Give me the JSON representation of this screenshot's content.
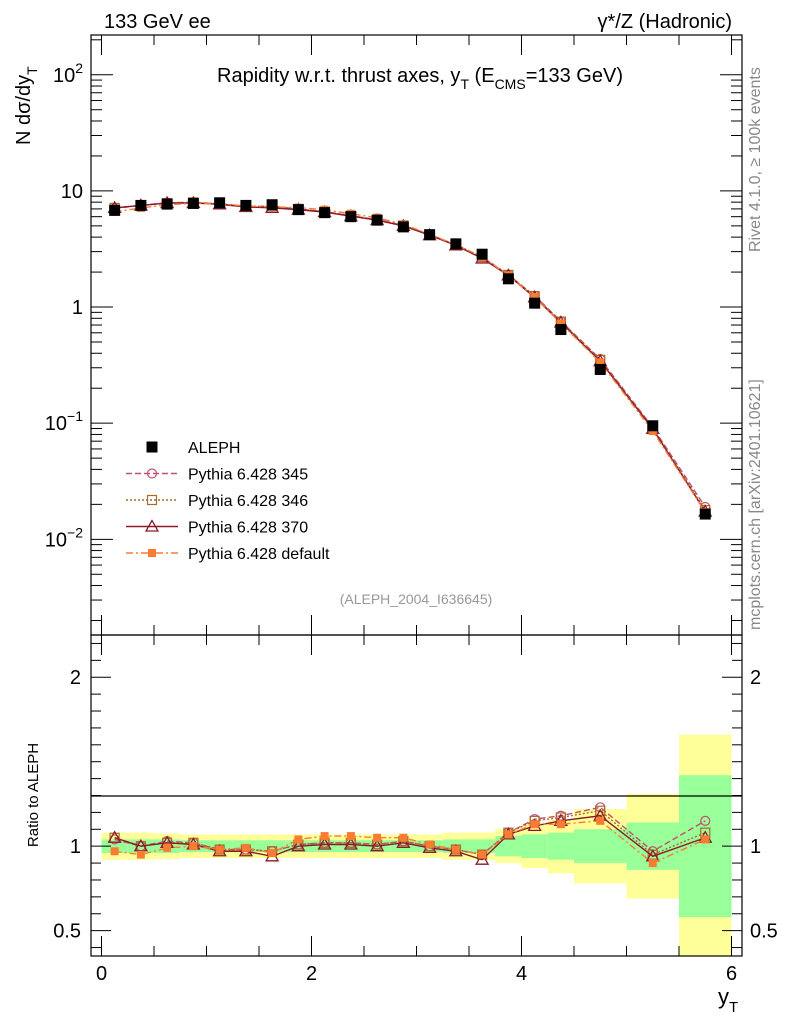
{
  "header": {
    "left": "133 GeV ee",
    "right": "γ*/Z (Hadronic)"
  },
  "side_labels": {
    "rivet": "Rivet 4.1.0, ≥ 100k events",
    "mcplots": "mcplots.cern.ch [arXiv:2401.10621]"
  },
  "chart_data": {
    "type": "line",
    "title_main": "Rapidity w.r.t. thrust axes, y",
    "title_sub": "T",
    "title_tail_open": " (E",
    "title_tail_sub": "CMS",
    "title_tail_close": "=133 GeV)",
    "analysis_tag": "(ALEPH_2004_I636645)",
    "ylabel_main": "N  dσ/dy",
    "ylabel_sub": "T",
    "xlabel_main": "y",
    "xlabel_sub": "T",
    "ratio_ylabel": "Ratio to ALEPH",
    "xlim": [
      -0.1,
      6.1
    ],
    "ylim_log": [
      0.0015,
      220
    ],
    "ratio_ylim": [
      0.35,
      2.25
    ],
    "x_ticks": [
      "0",
      "2",
      "4",
      "6"
    ],
    "y_ticks": [
      {
        "value": 100,
        "base": "10",
        "exp": "2"
      },
      {
        "value": 10,
        "base": "10",
        "exp": ""
      },
      {
        "value": 1,
        "base": "1",
        "exp": ""
      },
      {
        "value": 0.1,
        "base": "10",
        "exp": "−1"
      },
      {
        "value": 0.01,
        "base": "10",
        "exp": "−2"
      }
    ],
    "ratio_ticks": [
      "0.5",
      "1",
      "2"
    ],
    "x_edges": [
      0,
      0.25,
      0.5,
      0.75,
      1.0,
      1.25,
      1.5,
      1.75,
      2.0,
      2.25,
      2.5,
      2.75,
      3.0,
      3.25,
      3.5,
      3.75,
      4.0,
      4.25,
      4.5,
      5.0,
      5.5,
      6.0
    ],
    "x": [
      0.125,
      0.375,
      0.625,
      0.875,
      1.125,
      1.375,
      1.625,
      1.875,
      2.125,
      2.375,
      2.625,
      2.875,
      3.125,
      3.375,
      3.625,
      3.875,
      4.125,
      4.375,
      4.75,
      5.25,
      5.75
    ],
    "data_values": [
      6.8,
      7.5,
      7.7,
      7.8,
      7.9,
      7.5,
      7.6,
      6.9,
      6.5,
      6.0,
      5.6,
      4.9,
      4.2,
      3.5,
      2.85,
      1.75,
      1.08,
      0.64,
      0.29,
      0.095,
      0.0165
    ],
    "ratio_bands": {
      "green_half": [
        0.04,
        0.04,
        0.04,
        0.035,
        0.035,
        0.035,
        0.035,
        0.035,
        0.035,
        0.035,
        0.035,
        0.035,
        0.035,
        0.04,
        0.04,
        0.06,
        0.07,
        0.08,
        0.1,
        0.14,
        0.42
      ],
      "yellow_half": [
        0.08,
        0.08,
        0.075,
        0.07,
        0.07,
        0.07,
        0.07,
        0.07,
        0.07,
        0.07,
        0.07,
        0.07,
        0.07,
        0.08,
        0.08,
        0.1,
        0.13,
        0.16,
        0.22,
        0.31,
        0.66
      ]
    },
    "series": [
      {
        "name": "ALEPH",
        "color": "#000000",
        "dash": "",
        "marker": "filled-square",
        "ratios": [
          1,
          1,
          1,
          1,
          1,
          1,
          1,
          1,
          1,
          1,
          1,
          1,
          1,
          1,
          1,
          1,
          1,
          1,
          1,
          1,
          1
        ]
      },
      {
        "name": "Pythia 6.428 345",
        "color": "#c0506e",
        "dash": "6,3",
        "marker": "open-circle",
        "ratios": [
          1.04,
          1.0,
          1.03,
          1.02,
          0.98,
          0.98,
          0.97,
          1.01,
          1.02,
          1.02,
          1.01,
          1.03,
          1.0,
          0.98,
          0.95,
          1.08,
          1.16,
          1.18,
          1.23,
          0.97,
          1.15
        ]
      },
      {
        "name": "Pythia 6.428 346",
        "color": "#a86b2a",
        "dash": "2,2",
        "marker": "open-square",
        "ratios": [
          1.05,
          1.0,
          1.02,
          1.02,
          0.98,
          0.98,
          0.97,
          1.01,
          1.02,
          1.02,
          1.01,
          1.03,
          1.0,
          0.98,
          0.95,
          1.08,
          1.15,
          1.17,
          1.21,
          0.95,
          1.08
        ]
      },
      {
        "name": "Pythia 6.428 370",
        "color": "#8b1a2a",
        "dash": "",
        "marker": "open-triangle",
        "ratios": [
          1.05,
          1.0,
          1.02,
          1.01,
          0.97,
          0.97,
          0.94,
          1.0,
          1.01,
          1.01,
          1.0,
          1.02,
          0.99,
          0.97,
          0.92,
          1.07,
          1.12,
          1.15,
          1.18,
          0.94,
          1.05
        ]
      },
      {
        "name": "Pythia 6.428 default",
        "color": "#f97c33",
        "dash": "7,3,2,3",
        "marker": "filled-small-square",
        "ratios": [
          0.97,
          0.95,
          0.99,
          1.0,
          0.98,
          0.99,
          0.96,
          1.04,
          1.06,
          1.06,
          1.05,
          1.05,
          1.01,
          0.98,
          0.95,
          1.07,
          1.13,
          1.13,
          1.15,
          0.9,
          1.04
        ]
      }
    ]
  }
}
